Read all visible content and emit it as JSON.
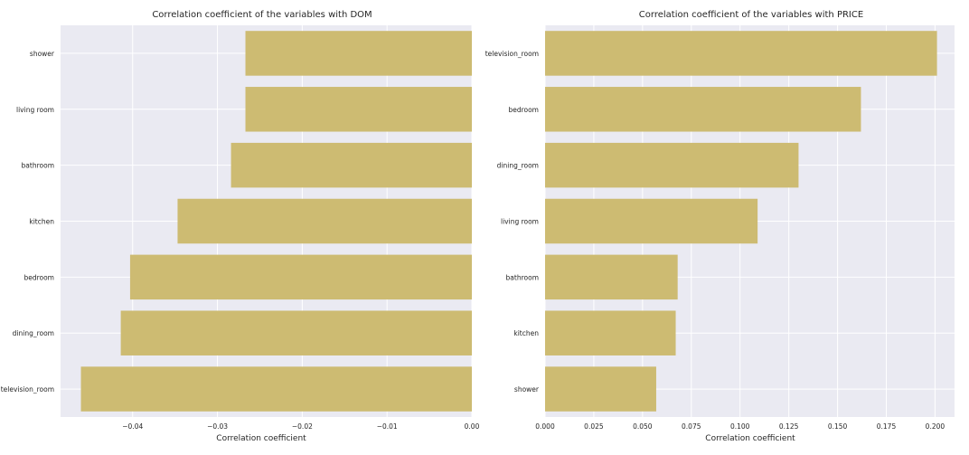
{
  "chart_data": [
    {
      "type": "bar",
      "orientation": "horizontal",
      "title": "Correlation coefficient of the variables with DOM",
      "xlabel": "Correlation coefficient",
      "ylabel": "",
      "categories": [
        "shower",
        "living room",
        "bathroom",
        "kitchen",
        "bedroom",
        "dining_room",
        "television_room"
      ],
      "values": [
        -0.0267,
        -0.0267,
        -0.0284,
        -0.0347,
        -0.0403,
        -0.0414,
        -0.0461
      ],
      "xlim": [
        -0.0485,
        0.0
      ],
      "xticks": [
        "−0.04",
        "−0.03",
        "−0.02",
        "−0.01",
        "0.00"
      ],
      "xtick_values": [
        -0.04,
        -0.03,
        -0.02,
        -0.01,
        0.0
      ],
      "bar_color": "#cdbb72",
      "background": "#eaeaf2",
      "grid": true
    },
    {
      "type": "bar",
      "orientation": "horizontal",
      "title": "Correlation coefficient of the variables with PRICE",
      "xlabel": "Correlation coefficient",
      "ylabel": "",
      "categories": [
        "television_room",
        "bedroom",
        "dining_room",
        "living room",
        "bathroom",
        "kitchen",
        "shower"
      ],
      "values": [
        0.201,
        0.162,
        0.13,
        0.109,
        0.068,
        0.067,
        0.057
      ],
      "xlim": [
        0.0,
        0.21
      ],
      "xticks": [
        "0.000",
        "0.025",
        "0.050",
        "0.075",
        "0.100",
        "0.125",
        "0.150",
        "0.175",
        "0.200"
      ],
      "xtick_values": [
        0.0,
        0.025,
        0.05,
        0.075,
        0.1,
        0.125,
        0.15,
        0.175,
        0.2
      ],
      "bar_color": "#cdbb72",
      "background": "#eaeaf2",
      "grid": true
    }
  ]
}
